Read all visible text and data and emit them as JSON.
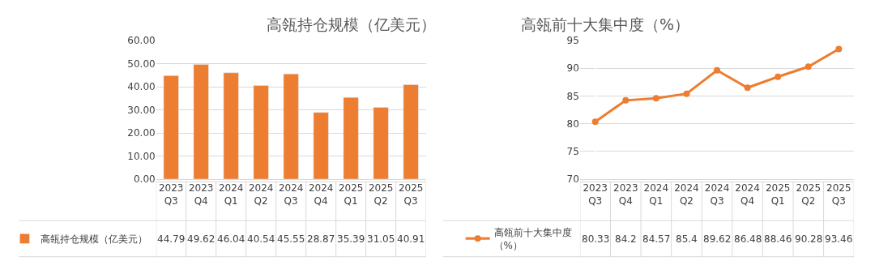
{
  "chart_data": [
    {
      "type": "bar",
      "title": "高瓴持仓规模（亿美元）",
      "categories": [
        "2023\nQ3",
        "2023\nQ4",
        "2024\nQ1",
        "2024\nQ2",
        "2024\nQ3",
        "2024\nQ4",
        "2025\nQ1",
        "2025\nQ2",
        "2025\nQ3"
      ],
      "series": [
        {
          "name": "高瓴持仓规模（亿美元）",
          "color": "#ed7d31",
          "values": [
            44.79,
            49.62,
            46.04,
            40.54,
            45.55,
            28.87,
            35.39,
            31.05,
            40.91
          ]
        }
      ],
      "ylim": [
        0,
        60
      ],
      "yticks": [
        {
          "value": 0,
          "label": "0.00"
        },
        {
          "value": 10,
          "label": "10.00"
        },
        {
          "value": 20,
          "label": "20.00"
        },
        {
          "value": 30,
          "label": "30.00"
        },
        {
          "value": 40,
          "label": "40.00"
        },
        {
          "value": 50,
          "label": "50.00"
        },
        {
          "value": 60,
          "label": "60.00"
        }
      ],
      "grid": "y",
      "legend": "bottom left",
      "data_labels": true
    },
    {
      "type": "line",
      "title": "高瓴前十大集中度（%）",
      "categories": [
        "2023\nQ3",
        "2023\nQ4",
        "2024\nQ1",
        "2024\nQ2",
        "2024\nQ3",
        "2024\nQ4",
        "2025\nQ1",
        "2025\nQ2",
        "2025\nQ3"
      ],
      "series": [
        {
          "name": "高瓴前十大集中度（%）",
          "color": "#ed7d31",
          "values": [
            80.33,
            84.2,
            84.57,
            85.4,
            89.62,
            86.48,
            88.46,
            90.28,
            93.46
          ]
        }
      ],
      "ylim": [
        70,
        95
      ],
      "yticks": [
        70,
        75,
        80,
        85,
        90,
        95
      ],
      "grid": "y",
      "legend": "bottom left",
      "marker": "circle",
      "line_style": "solid",
      "data_labels": true
    }
  ]
}
